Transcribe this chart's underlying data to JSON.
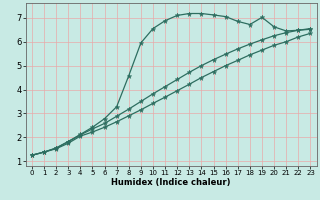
{
  "xlabel": "Humidex (Indice chaleur)",
  "xlim": [
    -0.5,
    23.5
  ],
  "ylim": [
    0.8,
    7.6
  ],
  "yticks": [
    1,
    2,
    3,
    4,
    5,
    6,
    7
  ],
  "xticks": [
    0,
    1,
    2,
    3,
    4,
    5,
    6,
    7,
    8,
    9,
    10,
    11,
    12,
    13,
    14,
    15,
    16,
    17,
    18,
    19,
    20,
    21,
    22,
    23
  ],
  "bg_color": "#c8eae4",
  "grid_color": "#e8aaaa",
  "line_color": "#2d6e60",
  "curve1_x": [
    0,
    1,
    2,
    3,
    4,
    5,
    6,
    7,
    8,
    9,
    10,
    11,
    12,
    13,
    14,
    15,
    16,
    17,
    18,
    19,
    20,
    21,
    22,
    23
  ],
  "curve1_y": [
    1.25,
    1.38,
    1.52,
    1.75,
    2.05,
    2.22,
    2.42,
    2.65,
    2.9,
    3.15,
    3.42,
    3.68,
    3.95,
    4.22,
    4.5,
    4.75,
    5.0,
    5.22,
    5.45,
    5.65,
    5.85,
    6.0,
    6.2,
    6.35
  ],
  "curve2_x": [
    0,
    1,
    2,
    3,
    4,
    5,
    6,
    7,
    8,
    9,
    10,
    11,
    12,
    13,
    14,
    15,
    16,
    17,
    18,
    19,
    20,
    21,
    22,
    23
  ],
  "curve2_y": [
    1.25,
    1.38,
    1.55,
    1.82,
    2.1,
    2.35,
    2.58,
    2.88,
    3.18,
    3.5,
    3.82,
    4.12,
    4.42,
    4.72,
    5.0,
    5.25,
    5.48,
    5.7,
    5.9,
    6.08,
    6.25,
    6.38,
    6.48,
    6.55
  ],
  "curve3_x": [
    0,
    1,
    2,
    3,
    4,
    5,
    6,
    7,
    8,
    9,
    10,
    11,
    12,
    13,
    14,
    15,
    16,
    17,
    18,
    19,
    20,
    21,
    22,
    23
  ],
  "curve3_y": [
    1.25,
    1.38,
    1.55,
    1.82,
    2.12,
    2.42,
    2.78,
    3.28,
    4.58,
    5.95,
    6.55,
    6.88,
    7.1,
    7.18,
    7.18,
    7.12,
    7.05,
    6.85,
    6.72,
    7.02,
    6.62,
    6.45,
    6.48,
    6.52
  ],
  "marker_size": 2.5,
  "line_width": 0.9,
  "xlabel_fontsize": 6,
  "tick_fontsize": 5
}
